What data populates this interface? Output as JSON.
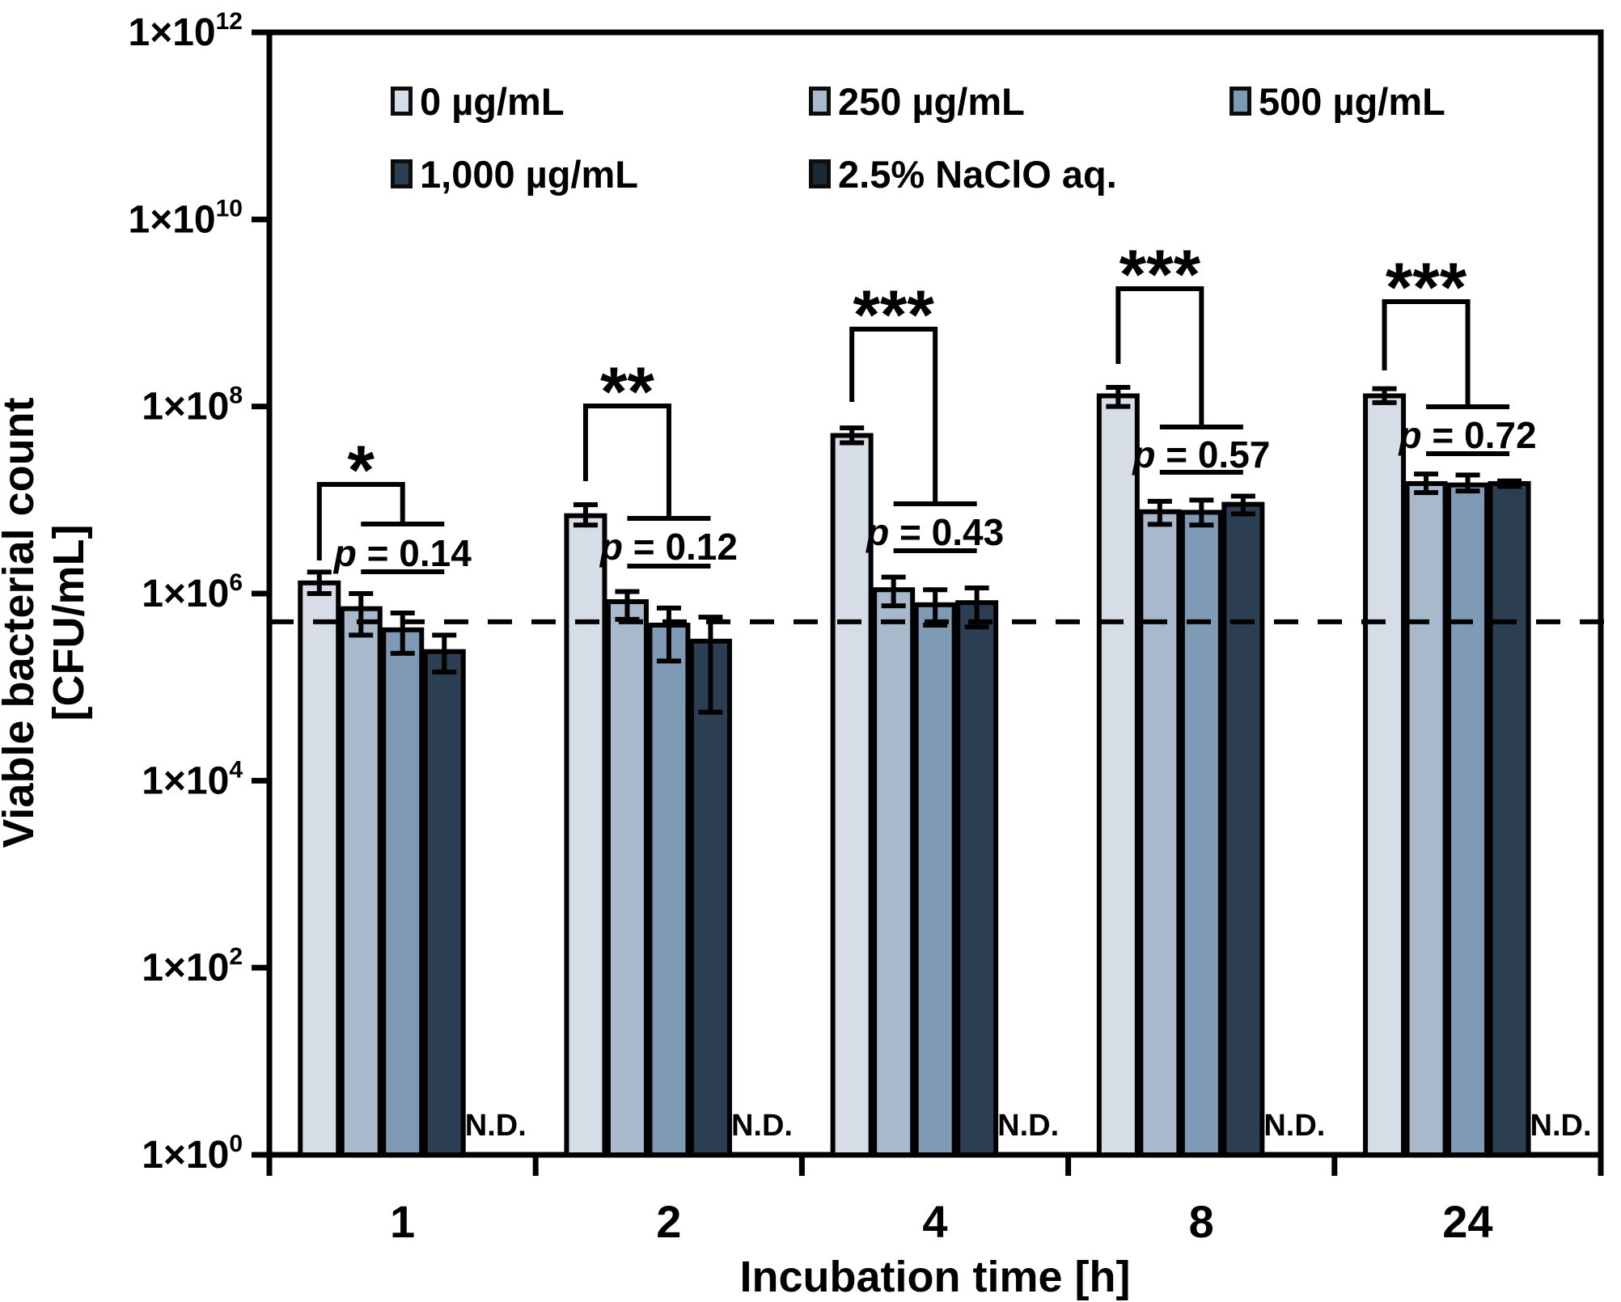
{
  "chart_data": {
    "type": "bar",
    "title": "",
    "xlabel": "Incubation time [h]",
    "ylabel": "Viable bacterial count [CFU/mL]",
    "y_scale": "log10",
    "ylim": [
      1,
      1000000000000.0
    ],
    "y_tick_labels": [
      "1×10⁰",
      "1×10²",
      "1×10⁴",
      "1×10⁶",
      "1×10⁸",
      "1×10¹⁰",
      "1×10¹²"
    ],
    "y_tick_exponents": [
      0,
      2,
      4,
      6,
      8,
      10,
      12
    ],
    "categories": [
      "1",
      "2",
      "4",
      "8",
      "24"
    ],
    "series": [
      {
        "name": "0 µg/mL",
        "color": "#d6dde6",
        "values": [
          1300000.0,
          6800000.0,
          49000000.0,
          130000000.0,
          130000000.0
        ],
        "err_hi": [
          1700000.0,
          8900000.0,
          59000000.0,
          160000000.0,
          155000000.0
        ],
        "err_lo": [
          1000000.0,
          5400000.0,
          41000000.0,
          100000000.0,
          110000000.0
        ]
      },
      {
        "name": "250 µg/mL",
        "color": "#a9b9cc",
        "values": [
          690000.0,
          820000.0,
          1100000.0,
          7500000.0,
          15000000.0
        ],
        "err_hi": [
          1000000.0,
          1050000.0,
          1500000.0,
          9700000.0,
          19000000.0
        ],
        "err_lo": [
          360000.0,
          530000.0,
          740000.0,
          5500000.0,
          12000000.0
        ]
      },
      {
        "name": "500 µg/mL",
        "color": "#7f9ab5",
        "values": [
          410000.0,
          460000.0,
          760000.0,
          7400000.0,
          14500000.0
        ],
        "err_hi": [
          620000.0,
          700000.0,
          1100000.0,
          10000000.0,
          18500000.0
        ],
        "err_lo": [
          230000.0,
          190000.0,
          460000.0,
          5400000.0,
          12500000.0
        ]
      },
      {
        "name": "1,000 µg/mL",
        "color": "#2b3e52",
        "values": [
          240000.0,
          310000.0,
          800000.0,
          9000000.0,
          15000000.0
        ],
        "err_hi": [
          360000.0,
          560000.0,
          1150000.0,
          11000000.0,
          16000000.0
        ],
        "err_lo": [
          145000.0,
          54000.0,
          440000.0,
          7100000.0,
          14000000.0
        ]
      },
      {
        "name": "2.5% NaClO aq.",
        "color": "#1b2835",
        "values": [
          null,
          null,
          null,
          null,
          null
        ],
        "nd_labels": [
          "N.D.",
          "N.D.",
          "N.D.",
          "N.D.",
          "N.D."
        ]
      }
    ],
    "nd_label": "N.D.",
    "dashed_line_value": 500000.0,
    "legend_position": "top-inside",
    "grid": false,
    "annotations": [
      {
        "group": "1",
        "stars": "*",
        "p_text": "p = 0.14"
      },
      {
        "group": "2",
        "stars": "**",
        "p_text": "p = 0.12"
      },
      {
        "group": "4",
        "stars": "***",
        "p_text": "p = 0.43"
      },
      {
        "group": "8",
        "stars": "***",
        "p_text": "p = 0.57"
      },
      {
        "group": "24",
        "stars": "***",
        "p_text": "p = 0.72"
      }
    ]
  },
  "colors": {
    "axis": "#000000",
    "bar_border": "#000000",
    "dashed_line": "#000000",
    "text": "#000000"
  }
}
